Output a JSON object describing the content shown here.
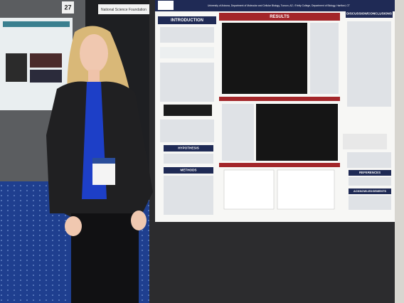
{
  "scene": {
    "booth_number": "27",
    "banner": "National Science Foundation",
    "poster": {
      "affiliation": "University of Arizona, Department of Molecular and Cellular Biology, Tucson, AZ; ²Trinity College, Department of Biology, Hartford, CT",
      "sections": {
        "introduction": "INTRODUCTION",
        "results": "RESULTS",
        "discussion": "DISCUSSION/CONCLUSIONS",
        "hypothesis": "HYPOTHESIS",
        "methods": "METHODS",
        "references": "REFERENCES",
        "acknowledgements": "ACKNOWLEDGEMENTS"
      }
    }
  }
}
